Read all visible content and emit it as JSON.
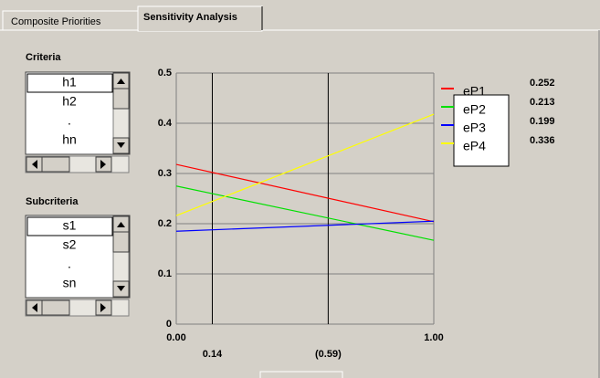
{
  "tabs": [
    "Composite Priorities",
    "Sensitivity Analysis"
  ],
  "criteria": {
    "label": "Criteria",
    "items": [
      "h1",
      "h2",
      ".",
      "hn"
    ]
  },
  "subcriteria": {
    "label": "Subcriteria",
    "items": [
      "s1",
      "s2",
      ".",
      "sn"
    ]
  },
  "chart_data": {
    "type": "line",
    "x": [
      0,
      1
    ],
    "xlim": [
      0,
      1
    ],
    "xticks": [
      {
        "value": 0,
        "label": "0.00"
      },
      {
        "value": 1,
        "label": "1.00"
      }
    ],
    "ylim": [
      0,
      0.5
    ],
    "yticks": [
      0,
      0.1,
      0.2,
      0.3,
      0.4,
      0.5
    ],
    "grid": true,
    "markers": [
      0.14,
      {
        "value": 0.59,
        "label": "(0.59)"
      }
    ],
    "series": [
      {
        "name": "eP1",
        "color": "#ff0000",
        "values": [
          0.318,
          0.204
        ],
        "priority": 0.252
      },
      {
        "name": "eP2",
        "color": "#00e000",
        "values": [
          0.275,
          0.167
        ],
        "priority": 0.213
      },
      {
        "name": "eP3",
        "color": "#0000ff",
        "values": [
          0.185,
          0.205
        ],
        "priority": 0.199
      },
      {
        "name": "eP4",
        "color": "#ffff00",
        "values": [
          0.216,
          0.418
        ],
        "priority": 0.336
      }
    ]
  }
}
